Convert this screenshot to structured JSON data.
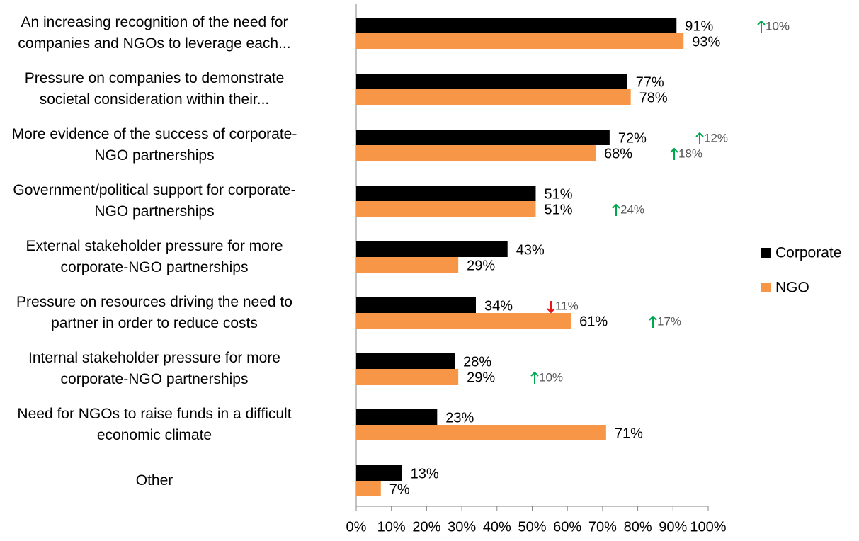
{
  "chart_data": {
    "type": "bar",
    "orientation": "horizontal",
    "categories": [
      "An increasing recognition of the need for\ncompanies and NGOs to leverage each...",
      "Pressure on companies to demonstrate\nsocietal consideration within their...",
      "More evidence of the success of corporate-\nNGO partnerships",
      "Government/political support for corporate-\nNGO partnerships",
      "External stakeholder pressure for more\ncorporate-NGO partnerships",
      "Pressure on resources driving the need to\npartner in order to reduce costs",
      "Internal stakeholder pressure for more\ncorporate-NGO partnerships",
      "Need for NGOs to raise funds in a difficult\neconomic climate",
      "Other"
    ],
    "series": [
      {
        "name": "Corporate",
        "color": "#000000",
        "values": [
          91,
          77,
          72,
          51,
          43,
          34,
          28,
          23,
          13
        ],
        "value_labels": [
          "91%",
          "77%",
          "72%",
          "51%",
          "43%",
          "34%",
          "28%",
          "23%",
          "13%"
        ]
      },
      {
        "name": "NGO",
        "color": "#f79646",
        "values": [
          93,
          78,
          68,
          51,
          29,
          61,
          29,
          71,
          7
        ],
        "value_labels": [
          "93%",
          "78%",
          "68%",
          "51%",
          "29%",
          "61%",
          "29%",
          "71%",
          "7%"
        ]
      }
    ],
    "annotations": [
      {
        "text": "10%",
        "direction": "up",
        "color": "#00a650",
        "series": 0,
        "category": 0
      },
      {
        "text": "12%",
        "direction": "up",
        "color": "#00a650",
        "series": 0,
        "category": 2
      },
      {
        "text": "18%",
        "direction": "up",
        "color": "#00a650",
        "series": 1,
        "category": 2
      },
      {
        "text": "24%",
        "direction": "up",
        "color": "#00a650",
        "series": 1,
        "category": 3
      },
      {
        "text": "11%",
        "direction": "down",
        "color": "#e8151b",
        "series": 0,
        "category": 5
      },
      {
        "text": "17%",
        "direction": "up",
        "color": "#00a650",
        "series": 1,
        "category": 5
      },
      {
        "text": "10%",
        "direction": "up",
        "color": "#00a650",
        "series": 1,
        "category": 6
      }
    ],
    "xlim": [
      0,
      100
    ],
    "xticks": [
      {
        "value": 0,
        "label": "0%"
      },
      {
        "value": 10,
        "label": "10%"
      },
      {
        "value": 20,
        "label": "20%"
      },
      {
        "value": 30,
        "label": "30%"
      },
      {
        "value": 40,
        "label": "40%"
      },
      {
        "value": 50,
        "label": "50%"
      },
      {
        "value": 60,
        "label": "60%"
      },
      {
        "value": 70,
        "label": "70%"
      },
      {
        "value": 80,
        "label": "80%"
      },
      {
        "value": 90,
        "label": "90%"
      },
      {
        "value": 100,
        "label": "100%"
      }
    ],
    "legend": "right",
    "grid": false
  }
}
